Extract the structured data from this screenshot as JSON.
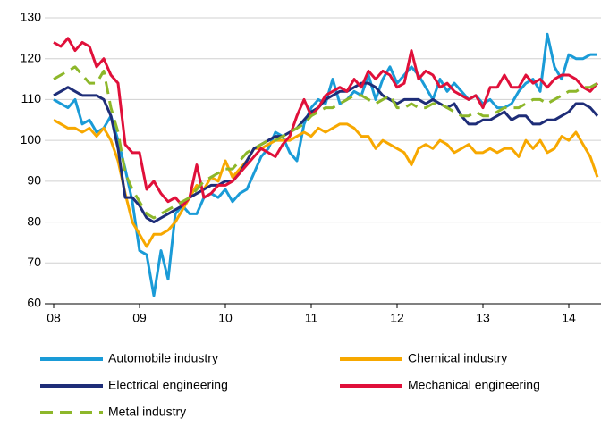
{
  "chart_data": {
    "type": "line",
    "categories": [
      "08",
      null,
      null,
      null,
      null,
      null,
      null,
      null,
      null,
      null,
      null,
      null,
      "09",
      null,
      null,
      null,
      null,
      null,
      null,
      null,
      null,
      null,
      null,
      null,
      "10",
      null,
      null,
      null,
      null,
      null,
      null,
      null,
      null,
      null,
      null,
      null,
      "11",
      null,
      null,
      null,
      null,
      null,
      null,
      null,
      null,
      null,
      null,
      null,
      "12",
      null,
      null,
      null,
      null,
      null,
      null,
      null,
      null,
      null,
      null,
      null,
      "13",
      null,
      null,
      null,
      null,
      null,
      null,
      null,
      null,
      null,
      null,
      null,
      "14",
      null,
      null,
      null,
      null
    ],
    "series": [
      {
        "name": "Automobile industry",
        "color": "#1a9bd7",
        "dashed": false,
        "values": [
          110,
          109,
          108,
          110,
          104,
          105,
          102,
          103,
          106,
          100,
          93,
          85,
          73,
          72,
          62,
          73,
          66,
          82,
          84,
          82,
          82,
          86,
          87,
          86,
          88,
          85,
          87,
          88,
          92,
          96,
          98,
          102,
          101,
          97,
          95,
          104,
          108,
          110,
          109,
          115,
          109,
          110,
          112,
          111,
          116,
          110,
          115,
          118,
          114,
          116,
          118,
          116,
          113,
          110,
          115,
          112,
          114,
          112,
          110,
          111,
          109,
          110,
          108,
          108,
          109,
          112,
          114,
          115,
          112,
          126,
          118,
          115,
          121,
          120,
          120,
          121,
          121
        ]
      },
      {
        "name": "Chemical industry",
        "color": "#f7a800",
        "dashed": false,
        "values": [
          105,
          104,
          103,
          103,
          102,
          103,
          101,
          103,
          100,
          95,
          87,
          80,
          77,
          74,
          77,
          77,
          78,
          80,
          83,
          86,
          89,
          88,
          91,
          90,
          95,
          91,
          93,
          95,
          98,
          98,
          99,
          100,
          100,
          100,
          101,
          102,
          101,
          103,
          102,
          103,
          104,
          104,
          103,
          101,
          101,
          98,
          100,
          99,
          98,
          97,
          94,
          98,
          99,
          98,
          100,
          99,
          97,
          98,
          99,
          97,
          97,
          98,
          97,
          98,
          98,
          96,
          100,
          98,
          100,
          97,
          98,
          101,
          100,
          102,
          99,
          96,
          91
        ]
      },
      {
        "name": "Electrical engineering",
        "color": "#1e2d78",
        "dashed": false,
        "values": [
          111,
          112,
          113,
          112,
          111,
          111,
          111,
          110,
          106,
          98,
          86,
          86,
          84,
          81,
          80,
          81,
          82,
          83,
          84,
          86,
          87,
          88,
          89,
          89,
          90,
          90,
          92,
          95,
          98,
          99,
          100,
          101,
          101,
          102,
          103,
          105,
          107,
          108,
          110,
          111,
          112,
          112,
          113,
          114,
          114,
          113,
          111,
          110,
          109,
          110,
          110,
          110,
          109,
          110,
          109,
          108,
          109,
          106,
          104,
          104,
          105,
          105,
          106,
          107,
          105,
          106,
          106,
          104,
          104,
          105,
          105,
          106,
          107,
          109,
          109,
          108,
          106
        ]
      },
      {
        "name": "Mechanical engineering",
        "color": "#e0103a",
        "dashed": false,
        "values": [
          124,
          123,
          125,
          122,
          124,
          123,
          118,
          120,
          116,
          114,
          99,
          97,
          97,
          88,
          90,
          87,
          85,
          86,
          84,
          86,
          94,
          86,
          87,
          89,
          89,
          90,
          92,
          94,
          96,
          98,
          97,
          96,
          99,
          101,
          106,
          110,
          106,
          108,
          111,
          112,
          113,
          112,
          115,
          113,
          117,
          115,
          117,
          116,
          113,
          114,
          122,
          115,
          117,
          116,
          113,
          114,
          112,
          111,
          110,
          111,
          108,
          113,
          113,
          116,
          113,
          113,
          116,
          114,
          115,
          113,
          115,
          116,
          116,
          115,
          113,
          112,
          114
        ]
      },
      {
        "name": "Metal industry",
        "color": "#8db72a",
        "dashed": true,
        "values": [
          115,
          116,
          117,
          118,
          116,
          114,
          114,
          117,
          108,
          102,
          92,
          88,
          85,
          82,
          81,
          82,
          83,
          84,
          85,
          86,
          88,
          90,
          91,
          92,
          93,
          93,
          95,
          97,
          98,
          99,
          100,
          100,
          101,
          102,
          103,
          104,
          106,
          107,
          108,
          108,
          109,
          110,
          111,
          111,
          110,
          109,
          110,
          111,
          108,
          108,
          109,
          108,
          108,
          109,
          109,
          108,
          107,
          106,
          106,
          107,
          106,
          106,
          107,
          108,
          108,
          108,
          109,
          110,
          110,
          109,
          110,
          111,
          112,
          112,
          113,
          113,
          114
        ]
      }
    ],
    "ylim": [
      60,
      130
    ],
    "yticks": [
      60,
      70,
      80,
      90,
      100,
      110,
      120,
      130
    ],
    "grid": true,
    "legend": "bottom"
  }
}
